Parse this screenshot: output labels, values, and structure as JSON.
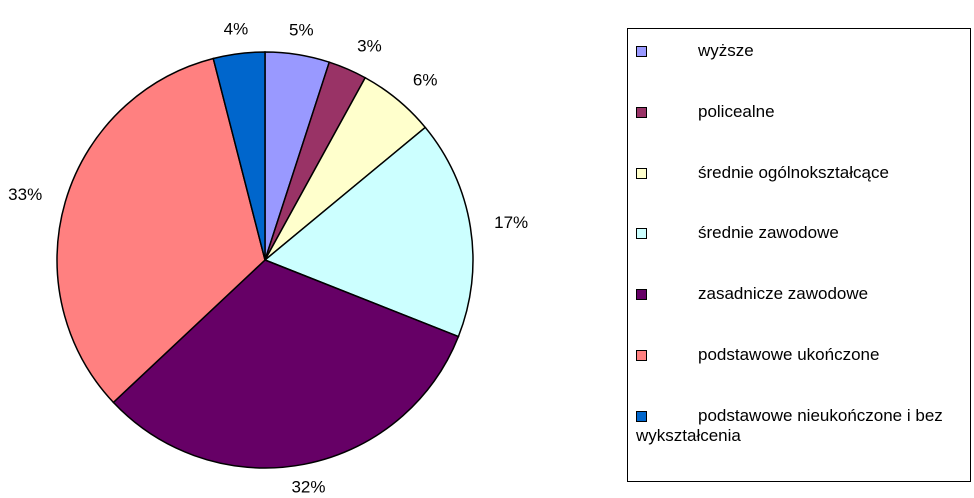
{
  "chart_data": {
    "type": "pie",
    "categories": [
      "wyższe",
      "policealne",
      "średnie ogólnokształcące",
      "średnie zawodowe",
      "zasadnicze zawodowe",
      "podstawowe ukończone",
      "podstawowe nieukończone i bez wykształcenia"
    ],
    "values": [
      5,
      3,
      6,
      17,
      32,
      33,
      4
    ],
    "value_labels": [
      "5%",
      "3%",
      "6%",
      "17%",
      "32%",
      "33%",
      "4%"
    ],
    "colors": [
      "#9999ff",
      "#993366",
      "#ffffcc",
      "#ccffff",
      "#660066",
      "#ff8080",
      "#0066cc"
    ],
    "legend": "right"
  }
}
